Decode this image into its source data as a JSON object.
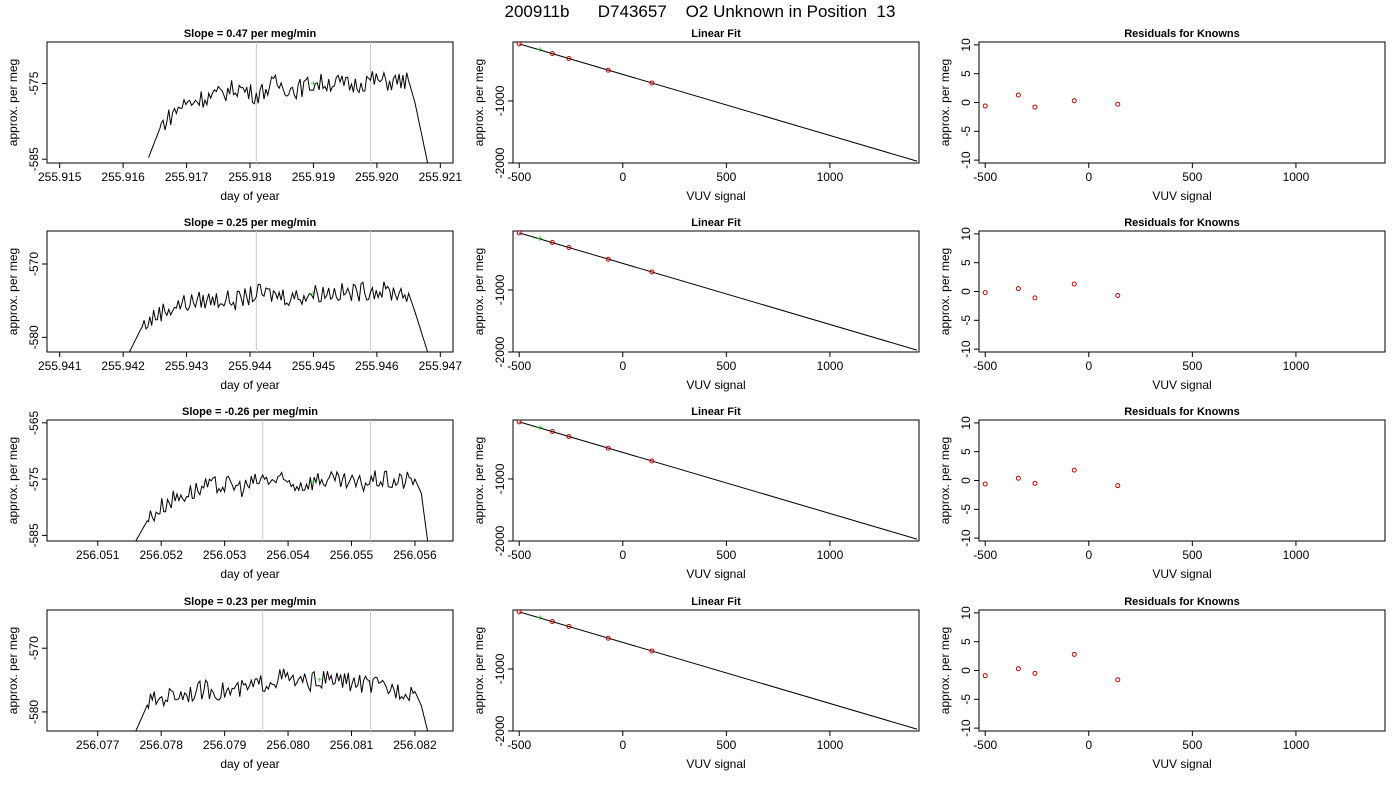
{
  "figure": {
    "title": "200911b      D743657    O2 Unknown in Position  13"
  },
  "colors": {
    "trace": "#000000",
    "marker_vertical": "#c8c8c8",
    "unknown_point": "#00cc00",
    "known_point": "#cc0000"
  },
  "chart_data": [
    {
      "row": 1,
      "panel": "time-series",
      "type": "line",
      "title": "Slope =  0.47  per meg/min",
      "xlabel": "day of year",
      "ylabel": "approx. per meg",
      "xlim": [
        255.9148,
        255.9212
      ],
      "ylim": [
        -585.5,
        -569.5
      ],
      "xticks": [
        "255.915",
        "255.916",
        "255.917",
        "255.918",
        "255.919",
        "255.920",
        "255.921"
      ],
      "yticks": [
        "-575",
        "-585"
      ],
      "ytick_values": [
        -575,
        -585
      ],
      "vlines": [
        255.9181,
        255.9199
      ],
      "unknown_point": {
        "x": 255.919,
        "y": -575.0
      },
      "series": [
        {
          "values": [
            [
              255.9164,
              -584.8
            ],
            [
              255.9166,
              -580.5
            ],
            [
              255.9169,
              -578.0
            ],
            [
              255.9172,
              -577.0
            ],
            [
              255.9175,
              -576.5
            ],
            [
              255.9178,
              -575.5
            ],
            [
              255.9181,
              -576.5
            ],
            [
              255.9184,
              -575.0
            ],
            [
              255.9187,
              -575.8
            ],
            [
              255.919,
              -575.0
            ],
            [
              255.9193,
              -574.8
            ],
            [
              255.9196,
              -575.3
            ],
            [
              255.9199,
              -574.5
            ],
            [
              255.9202,
              -574.8
            ],
            [
              255.9205,
              -574.6
            ],
            [
              255.9206,
              -577.5
            ],
            [
              255.9208,
              -585.5
            ]
          ]
        }
      ],
      "grid": false
    },
    {
      "row": 1,
      "panel": "linear-fit",
      "type": "scatter",
      "title": "Linear Fit",
      "xlabel": "VUV signal",
      "ylabel": "approx. per meg",
      "xlim": [
        -530,
        1430
      ],
      "ylim": [
        -2000,
        -50
      ],
      "xticks": [
        "-500",
        "0",
        "500",
        "1000"
      ],
      "xtick_values": [
        -500,
        0,
        500,
        1000
      ],
      "yticks": [
        "-1000",
        "-2000"
      ],
      "ytick_values": [
        -1000,
        -2000
      ],
      "fit_line": [
        [
          -500,
          -80
        ],
        [
          1420,
          -1970
        ]
      ],
      "knowns": [
        [
          -500,
          -80
        ],
        [
          -340,
          -236
        ],
        [
          -260,
          -316
        ],
        [
          -70,
          -505
        ],
        [
          140,
          -710
        ]
      ],
      "unknown": [
        -400,
        -180
      ]
    },
    {
      "row": 1,
      "panel": "residuals",
      "type": "scatter",
      "title": "Residuals for Knowns",
      "xlabel": "VUV signal",
      "ylabel": "approx. per meg",
      "xlim": [
        -530,
        1430
      ],
      "ylim": [
        -10.5,
        10.5
      ],
      "xticks": [
        "-500",
        "0",
        "500",
        "1000"
      ],
      "xtick_values": [
        -500,
        0,
        500,
        1000
      ],
      "yticks": [
        "10",
        "5",
        "0",
        "-5",
        "-10"
      ],
      "ytick_values": [
        10,
        5,
        0,
        -5,
        -10
      ],
      "residuals": [
        [
          -500,
          -0.6
        ],
        [
          -340,
          1.3
        ],
        [
          -260,
          -0.8
        ],
        [
          -70,
          0.3
        ],
        [
          140,
          -0.3
        ]
      ]
    },
    {
      "row": 2,
      "panel": "time-series",
      "type": "line",
      "title": "Slope =  0.25  per meg/min",
      "xlabel": "day of year",
      "ylabel": "approx. per meg",
      "xlim": [
        255.9408,
        255.9472
      ],
      "ylim": [
        -582.0,
        -565.5
      ],
      "xticks": [
        "255.941",
        "255.942",
        "255.943",
        "255.944",
        "255.945",
        "255.946",
        "255.947"
      ],
      "yticks": [
        "-570",
        "-580"
      ],
      "ytick_values": [
        -570,
        -580
      ],
      "vlines": [
        255.9441,
        255.9459
      ],
      "unknown_point": {
        "x": 255.945,
        "y": -574.0
      },
      "series": [
        {
          "values": [
            [
              255.9421,
              -582.0
            ],
            [
              255.9423,
              -578.5
            ],
            [
              255.9426,
              -576.5
            ],
            [
              255.9429,
              -575.5
            ],
            [
              255.9432,
              -575.0
            ],
            [
              255.9435,
              -574.8
            ],
            [
              255.9438,
              -575.0
            ],
            [
              255.9441,
              -574.0
            ],
            [
              255.9444,
              -574.2
            ],
            [
              255.9447,
              -574.5
            ],
            [
              255.945,
              -574.0
            ],
            [
              255.9453,
              -573.8
            ],
            [
              255.9456,
              -574.0
            ],
            [
              255.9459,
              -573.5
            ],
            [
              255.9462,
              -573.8
            ],
            [
              255.9465,
              -574.0
            ],
            [
              255.9466,
              -576.5
            ],
            [
              255.9468,
              -582.0
            ]
          ]
        }
      ],
      "grid": false
    },
    {
      "row": 2,
      "panel": "linear-fit",
      "type": "scatter",
      "title": "Linear Fit",
      "xlabel": "VUV signal",
      "ylabel": "approx. per meg",
      "xlim": [
        -530,
        1430
      ],
      "ylim": [
        -2000,
        -50
      ],
      "xticks": [
        "-500",
        "0",
        "500",
        "1000"
      ],
      "xtick_values": [
        -500,
        0,
        500,
        1000
      ],
      "yticks": [
        "-1000",
        "-2000"
      ],
      "ytick_values": [
        -1000,
        -2000
      ],
      "fit_line": [
        [
          -500,
          -80
        ],
        [
          1420,
          -1970
        ]
      ],
      "knowns": [
        [
          -500,
          -80
        ],
        [
          -340,
          -236
        ],
        [
          -260,
          -316
        ],
        [
          -70,
          -505
        ],
        [
          140,
          -710
        ]
      ],
      "unknown": [
        -400,
        -180
      ]
    },
    {
      "row": 2,
      "panel": "residuals",
      "type": "scatter",
      "title": "Residuals for Knowns",
      "xlabel": "VUV signal",
      "ylabel": "approx. per meg",
      "xlim": [
        -530,
        1430
      ],
      "ylim": [
        -10.5,
        10.5
      ],
      "xticks": [
        "-500",
        "0",
        "500",
        "1000"
      ],
      "xtick_values": [
        -500,
        0,
        500,
        1000
      ],
      "yticks": [
        "10",
        "5",
        "0",
        "-5",
        "-10"
      ],
      "ytick_values": [
        10,
        5,
        0,
        -5,
        -10
      ],
      "residuals": [
        [
          -500,
          -0.2
        ],
        [
          -340,
          0.5
        ],
        [
          -260,
          -1.1
        ],
        [
          -70,
          1.3
        ],
        [
          140,
          -0.7
        ]
      ]
    },
    {
      "row": 3,
      "panel": "time-series",
      "type": "line",
      "title": "Slope =  -0.26  per meg/min",
      "xlabel": "day of year",
      "ylabel": "approx. per meg",
      "xlim": [
        256.0502,
        256.0566
      ],
      "ylim": [
        -586.0,
        -564.5
      ],
      "xticks": [
        "256.051",
        "256.052",
        "256.053",
        "256.054",
        "256.055",
        "256.056"
      ],
      "yticks": [
        "-565",
        "-575",
        "-585"
      ],
      "ytick_values": [
        -565,
        -575,
        -585
      ],
      "vlines": [
        256.0536,
        256.0553
      ],
      "unknown_point": {
        "x": 256.0544,
        "y": -575.5
      },
      "series": [
        {
          "values": [
            [
              256.0516,
              -586.0
            ],
            [
              256.0518,
              -582.0
            ],
            [
              256.0521,
              -579.0
            ],
            [
              256.0524,
              -577.5
            ],
            [
              256.0527,
              -576.5
            ],
            [
              256.053,
              -576.0
            ],
            [
              256.0533,
              -576.5
            ],
            [
              256.0536,
              -575.0
            ],
            [
              256.0539,
              -575.5
            ],
            [
              256.0542,
              -576.0
            ],
            [
              256.0545,
              -575.0
            ],
            [
              256.0548,
              -575.5
            ],
            [
              256.0551,
              -576.0
            ],
            [
              256.0554,
              -575.0
            ],
            [
              256.0557,
              -575.5
            ],
            [
              256.056,
              -575.0
            ],
            [
              256.0561,
              -577.5
            ],
            [
              256.0562,
              -586.0
            ]
          ]
        }
      ],
      "grid": false
    },
    {
      "row": 3,
      "panel": "linear-fit",
      "type": "scatter",
      "title": "Linear Fit",
      "xlabel": "VUV signal",
      "ylabel": "approx. per meg",
      "xlim": [
        -530,
        1430
      ],
      "ylim": [
        -2000,
        -50
      ],
      "xticks": [
        "-500",
        "0",
        "500",
        "1000"
      ],
      "xtick_values": [
        -500,
        0,
        500,
        1000
      ],
      "yticks": [
        "-1000",
        "-2000"
      ],
      "ytick_values": [
        -1000,
        -2000
      ],
      "fit_line": [
        [
          -500,
          -80
        ],
        [
          1420,
          -1970
        ]
      ],
      "knowns": [
        [
          -500,
          -80
        ],
        [
          -340,
          -236
        ],
        [
          -260,
          -316
        ],
        [
          -70,
          -505
        ],
        [
          140,
          -710
        ]
      ],
      "unknown": [
        -400,
        -180
      ]
    },
    {
      "row": 3,
      "panel": "residuals",
      "type": "scatter",
      "title": "Residuals for Knowns",
      "xlabel": "VUV signal",
      "ylabel": "approx. per meg",
      "xlim": [
        -530,
        1430
      ],
      "ylim": [
        -10.5,
        10.5
      ],
      "xticks": [
        "-500",
        "0",
        "500",
        "1000"
      ],
      "xtick_values": [
        -500,
        0,
        500,
        1000
      ],
      "yticks": [
        "10",
        "5",
        "0",
        "-5",
        "-10"
      ],
      "ytick_values": [
        10,
        5,
        0,
        -5,
        -10
      ],
      "residuals": [
        [
          -500,
          -0.6
        ],
        [
          -340,
          0.4
        ],
        [
          -260,
          -0.5
        ],
        [
          -70,
          1.8
        ],
        [
          140,
          -0.9
        ]
      ]
    },
    {
      "row": 4,
      "panel": "time-series",
      "type": "line",
      "title": "Slope =  0.23  per meg/min",
      "xlabel": "day of year",
      "ylabel": "approx. per meg",
      "xlim": [
        256.0762,
        256.0826
      ],
      "ylim": [
        -583.0,
        -564.0
      ],
      "xticks": [
        "256.077",
        "256.078",
        "256.079",
        "256.080",
        "256.081",
        "256.082"
      ],
      "yticks": [
        "-570",
        "-580"
      ],
      "ytick_values": [
        -570,
        -580
      ],
      "vlines": [
        256.0796,
        256.0813
      ],
      "unknown_point": {
        "x": 256.0805,
        "y": -575.0
      },
      "series": [
        {
          "values": [
            [
              256.0776,
              -583.0
            ],
            [
              256.0778,
              -578.5
            ],
            [
              256.0781,
              -577.5
            ],
            [
              256.0784,
              -577.0
            ],
            [
              256.0787,
              -576.5
            ],
            [
              256.079,
              -576.8
            ],
            [
              256.0793,
              -576.5
            ],
            [
              256.0796,
              -575.5
            ],
            [
              256.0799,
              -574.5
            ],
            [
              256.0802,
              -575.5
            ],
            [
              256.0805,
              -575.0
            ],
            [
              256.0808,
              -575.0
            ],
            [
              256.0811,
              -575.5
            ],
            [
              256.0814,
              -576.0
            ],
            [
              256.0817,
              -576.5
            ],
            [
              256.082,
              -576.8
            ],
            [
              256.0821,
              -579.0
            ],
            [
              256.0822,
              -583.0
            ]
          ]
        }
      ],
      "grid": false
    },
    {
      "row": 4,
      "panel": "linear-fit",
      "type": "scatter",
      "title": "Linear Fit",
      "xlabel": "VUV signal",
      "ylabel": "approx. per meg",
      "xlim": [
        -530,
        1430
      ],
      "ylim": [
        -2000,
        -50
      ],
      "xticks": [
        "-500",
        "0",
        "500",
        "1000"
      ],
      "xtick_values": [
        -500,
        0,
        500,
        1000
      ],
      "yticks": [
        "-1000",
        "-2000"
      ],
      "ytick_values": [
        -1000,
        -2000
      ],
      "fit_line": [
        [
          -500,
          -80
        ],
        [
          1420,
          -1970
        ]
      ],
      "knowns": [
        [
          -500,
          -80
        ],
        [
          -340,
          -236
        ],
        [
          -260,
          -316
        ],
        [
          -70,
          -505
        ],
        [
          140,
          -710
        ]
      ],
      "unknown": [
        -400,
        -180
      ]
    },
    {
      "row": 4,
      "panel": "residuals",
      "type": "scatter",
      "title": "Residuals for Knowns",
      "xlabel": "VUV signal",
      "ylabel": "approx. per meg",
      "xlim": [
        -530,
        1430
      ],
      "ylim": [
        -10.5,
        10.5
      ],
      "xticks": [
        "-500",
        "0",
        "500",
        "1000"
      ],
      "xtick_values": [
        -500,
        0,
        500,
        1000
      ],
      "yticks": [
        "10",
        "5",
        "0",
        "-5",
        "-10"
      ],
      "ytick_values": [
        10,
        5,
        0,
        -5,
        -10
      ],
      "residuals": [
        [
          -500,
          -0.9
        ],
        [
          -340,
          0.3
        ],
        [
          -260,
          -0.5
        ],
        [
          -70,
          2.8
        ],
        [
          140,
          -1.6
        ]
      ]
    }
  ]
}
